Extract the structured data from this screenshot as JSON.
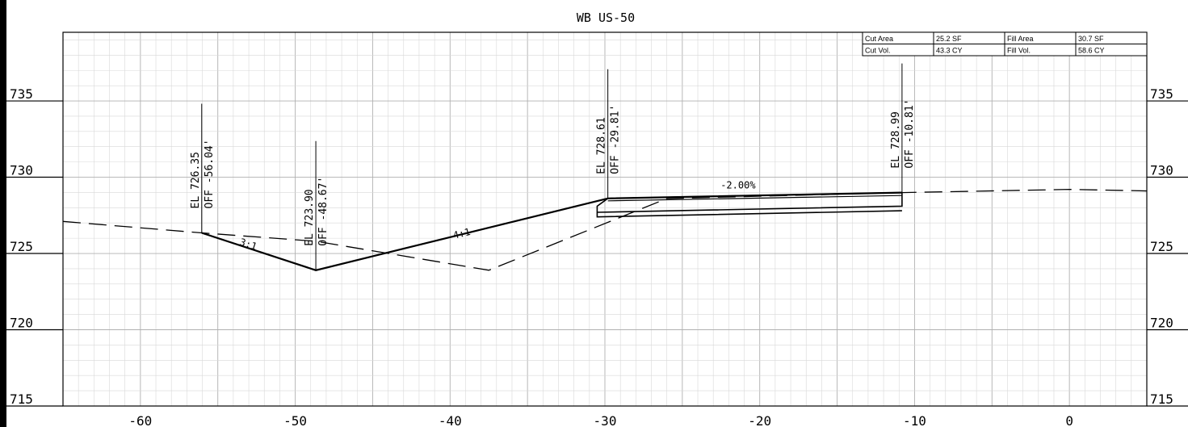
{
  "title": "WB US-50",
  "colors": {
    "line": "#000000",
    "grid_major": "#b0b0b0",
    "grid_minor": "#d8d8d8",
    "background": "#ffffff"
  },
  "axes": {
    "x_range": [
      -65,
      5
    ],
    "y_range": [
      715,
      739.5
    ],
    "x_ticks": [
      {
        "value": -60,
        "label": "-60"
      },
      {
        "value": -50,
        "label": "-50"
      },
      {
        "value": -40,
        "label": "-40"
      },
      {
        "value": -30,
        "label": "-30"
      },
      {
        "value": -20,
        "label": "-20"
      },
      {
        "value": -10,
        "label": "-10"
      },
      {
        "value": 0,
        "label": "0"
      }
    ],
    "y_ticks": [
      {
        "value": 735,
        "label": "735"
      },
      {
        "value": 730,
        "label": "730"
      },
      {
        "value": 725,
        "label": "725"
      },
      {
        "value": 720,
        "label": "720"
      },
      {
        "value": 715,
        "label": "715"
      }
    ],
    "grid": true
  },
  "quantities": {
    "row1": {
      "cut_label": "Cut Area",
      "cut_value": "25.2 SF",
      "fill_label": "Fill Area",
      "fill_value": "30.7 SF"
    },
    "row2": {
      "cut_label": "Cut Vol.",
      "cut_value": "43.3 CY",
      "fill_label": "Fill Vol.",
      "fill_value": "58.6 CY"
    }
  },
  "existing_ground": [
    [
      -65,
      727.1
    ],
    [
      -56.04,
      726.35
    ],
    [
      -48.67,
      725.8
    ],
    [
      -37.5,
      723.9
    ],
    [
      -26,
      728.6
    ],
    [
      -10.81,
      728.99
    ],
    [
      0,
      729.2
    ],
    [
      5,
      729.1
    ]
  ],
  "proposed_section": [
    [
      -56.04,
      726.35
    ],
    [
      -48.67,
      723.9
    ],
    [
      -29.81,
      728.61
    ],
    [
      -10.81,
      728.99
    ]
  ],
  "pavement_outline": [
    [
      -30.5,
      727.7
    ],
    [
      -10.81,
      728.1
    ],
    [
      -10.81,
      728.99
    ],
    [
      -29.81,
      728.61
    ],
    [
      -30.5,
      728.1
    ],
    [
      -30.5,
      727.4
    ],
    [
      -10.81,
      727.8
    ]
  ],
  "pavement_inner": [
    [
      -29.81,
      728.45
    ],
    [
      -10.81,
      728.8
    ]
  ],
  "callouts": [
    {
      "x": -56.04,
      "y": 726.35,
      "el": "EL 726.35",
      "off": "OFF -56.04'"
    },
    {
      "x": -48.67,
      "y": 723.9,
      "el": "EL 723.90",
      "off": "OFF -48.67'"
    },
    {
      "x": -29.81,
      "y": 728.61,
      "el": "EL 728.61",
      "off": "OFF -29.81'"
    },
    {
      "x": -10.81,
      "y": 728.99,
      "el": "EL 728.99",
      "off": "OFF -10.81'"
    }
  ],
  "slope_labels": [
    {
      "text": "3:1",
      "x": -53.1,
      "y": 725.4,
      "angle": 18
    },
    {
      "text": "4:1",
      "x": -39.2,
      "y": 726.1,
      "angle": -14
    },
    {
      "text": "-2.00%",
      "x": -21.4,
      "y": 729.25,
      "angle": 0
    }
  ]
}
